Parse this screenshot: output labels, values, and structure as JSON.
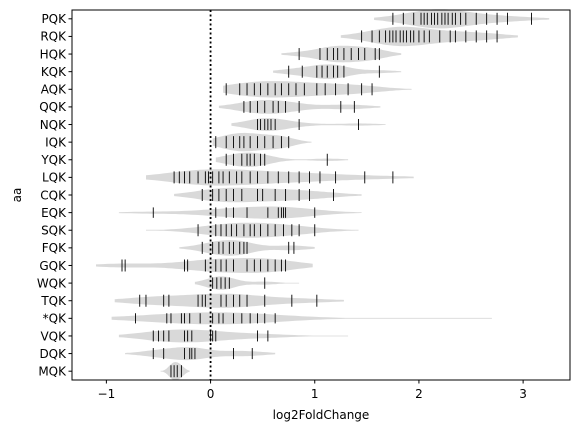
{
  "chart_data": {
    "type": "violin",
    "xlabel": "log2FoldChange",
    "ylabel": "aa",
    "xlim": [
      -1.33,
      3.45
    ],
    "xticks": [
      -1,
      0,
      1,
      2,
      3
    ],
    "xtick_labels": [
      "−1",
      "0",
      "1",
      "2",
      "3"
    ],
    "reference_line": {
      "x": 0,
      "style": "dotted"
    },
    "violin_color": "#d9d9d9",
    "stick_color": "#000000",
    "categories": [
      "PQK",
      "RQK",
      "HQK",
      "KQK",
      "AQK",
      "QQK",
      "NQK",
      "IQK",
      "YQK",
      "LQK",
      "CQK",
      "EQK",
      "SQK",
      "FQK",
      "GQK",
      "WQK",
      "TQK",
      "*QK",
      "VQK",
      "DQK",
      "MQK"
    ],
    "series": [
      {
        "category": "PQK",
        "range": [
          1.57,
          3.25
        ],
        "values": [
          1.75,
          1.85,
          1.95,
          2.02,
          2.05,
          2.08,
          2.12,
          2.15,
          2.18,
          2.22,
          2.25,
          2.28,
          2.32,
          2.35,
          2.4,
          2.45,
          2.55,
          2.65,
          2.75,
          2.85,
          3.08
        ]
      },
      {
        "category": "RQK",
        "range": [
          1.25,
          2.95
        ],
        "values": [
          1.45,
          1.55,
          1.62,
          1.68,
          1.72,
          1.75,
          1.78,
          1.82,
          1.85,
          1.88,
          1.92,
          1.95,
          2.0,
          2.05,
          2.1,
          2.2,
          2.3,
          2.35,
          2.45,
          2.55,
          2.65,
          2.75
        ]
      },
      {
        "category": "HQK",
        "range": [
          0.68,
          1.83
        ],
        "values": [
          0.85,
          1.05,
          1.12,
          1.18,
          1.22,
          1.28,
          1.35,
          1.42,
          1.48,
          1.58,
          1.62
        ]
      },
      {
        "category": "KQK",
        "range": [
          0.6,
          1.83
        ],
        "values": [
          0.75,
          0.88,
          1.02,
          1.07,
          1.12,
          1.18,
          1.22,
          1.28,
          1.62
        ]
      },
      {
        "category": "AQK",
        "range": [
          0.12,
          1.93
        ],
        "values": [
          0.15,
          0.28,
          0.35,
          0.42,
          0.48,
          0.55,
          0.62,
          0.68,
          0.75,
          0.82,
          0.9,
          1.02,
          1.1,
          1.2,
          1.32,
          1.45,
          1.55
        ]
      },
      {
        "category": "QQK",
        "range": [
          0.08,
          1.63
        ],
        "values": [
          0.32,
          0.38,
          0.45,
          0.52,
          0.6,
          0.65,
          0.72,
          0.85,
          1.25,
          1.38
        ]
      },
      {
        "category": "NQK",
        "range": [
          0.2,
          1.68
        ],
        "values": [
          0.45,
          0.48,
          0.52,
          0.55,
          0.58,
          0.62,
          0.85,
          1.42
        ]
      },
      {
        "category": "IQK",
        "range": [
          0.02,
          0.97
        ],
        "values": [
          0.05,
          0.15,
          0.22,
          0.28,
          0.32,
          0.38,
          0.45,
          0.52,
          0.6,
          0.68,
          0.75
        ]
      },
      {
        "category": "YQK",
        "range": [
          0.05,
          1.32
        ],
        "values": [
          0.15,
          0.22,
          0.3,
          0.35,
          0.38,
          0.42,
          0.48,
          0.52,
          1.12
        ]
      },
      {
        "category": "LQK",
        "range": [
          -0.62,
          1.95
        ],
        "values": [
          -0.35,
          -0.3,
          -0.25,
          -0.2,
          -0.12,
          -0.05,
          -0.02,
          0.02,
          0.08,
          0.12,
          0.18,
          0.25,
          0.3,
          0.38,
          0.45,
          0.55,
          0.65,
          0.75,
          0.85,
          0.95,
          1.05,
          1.2,
          1.48,
          1.75
        ]
      },
      {
        "category": "CQK",
        "range": [
          -0.35,
          1.45
        ],
        "values": [
          -0.08,
          0.02,
          0.08,
          0.15,
          0.22,
          0.3,
          0.45,
          0.5,
          0.62,
          0.72,
          0.85,
          0.95,
          1.18
        ]
      },
      {
        "category": "EQK",
        "range": [
          -0.88,
          1.45
        ],
        "values": [
          -0.55,
          0.05,
          0.15,
          0.22,
          0.35,
          0.55,
          0.65,
          0.68,
          0.7,
          0.72,
          1.0
        ]
      },
      {
        "category": "SQK",
        "range": [
          -0.62,
          1.42
        ],
        "values": [
          -0.12,
          0.05,
          0.1,
          0.15,
          0.2,
          0.25,
          0.32,
          0.38,
          0.42,
          0.48,
          0.55,
          0.62,
          0.7,
          0.78,
          0.85,
          1.0
        ]
      },
      {
        "category": "FQK",
        "range": [
          -0.3,
          1.0
        ],
        "values": [
          -0.08,
          0.02,
          0.08,
          0.12,
          0.18,
          0.22,
          0.28,
          0.32,
          0.35,
          0.75,
          0.8
        ]
      },
      {
        "category": "GQK",
        "range": [
          -1.1,
          0.98
        ],
        "values": [
          -0.85,
          -0.82,
          -0.25,
          -0.22,
          -0.05,
          0.05,
          0.1,
          0.15,
          0.22,
          0.35,
          0.42,
          0.48,
          0.55,
          0.62,
          0.68,
          0.72
        ]
      },
      {
        "category": "WQK",
        "range": [
          -0.15,
          0.85
        ],
        "values": [
          0.02,
          0.06,
          0.1,
          0.14,
          0.18,
          0.52
        ]
      },
      {
        "category": "TQK",
        "range": [
          -0.92,
          1.28
        ],
        "values": [
          -0.68,
          -0.62,
          -0.45,
          -0.4,
          -0.12,
          -0.08,
          -0.05,
          0.1,
          0.15,
          0.22,
          0.28,
          0.35,
          0.52,
          0.78,
          1.02
        ]
      },
      {
        "category": "*QK",
        "range": [
          -0.95,
          2.7
        ],
        "values": [
          -0.72,
          -0.42,
          -0.38,
          -0.28,
          -0.25,
          -0.2,
          -0.1,
          0.02,
          0.08,
          0.12,
          0.22,
          0.3,
          0.38,
          0.45,
          0.52,
          0.62
        ]
      },
      {
        "category": "VQK",
        "range": [
          -0.88,
          1.32
        ],
        "values": [
          -0.55,
          -0.5,
          -0.45,
          -0.4,
          -0.25,
          -0.22,
          -0.18,
          0.0,
          0.02,
          0.05,
          0.45,
          0.55
        ]
      },
      {
        "category": "DQK",
        "range": [
          -0.82,
          0.62
        ],
        "values": [
          -0.55,
          -0.45,
          -0.25,
          -0.2,
          -0.18,
          -0.15,
          0.22,
          0.4
        ]
      },
      {
        "category": "MQK",
        "range": [
          -0.48,
          -0.2
        ],
        "values": [
          -0.38,
          -0.35,
          -0.32,
          -0.28
        ]
      }
    ]
  }
}
